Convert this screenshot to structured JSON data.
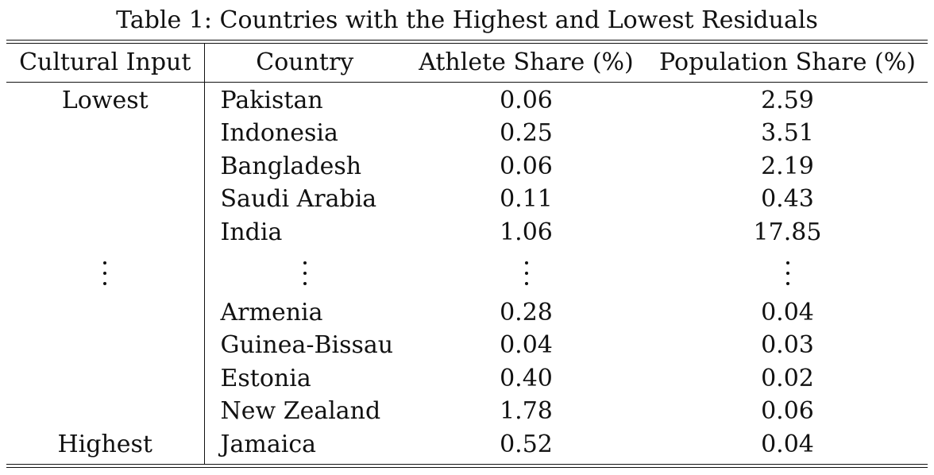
{
  "caption": "Table 1: Countries with the Highest and Lowest Residuals",
  "headers": {
    "cultural_input": "Cultural Input",
    "country": "Country",
    "athlete_share": "Athlete Share (%)",
    "population_share": "Population Share (%)"
  },
  "top_rows": [
    {
      "cultural_input": "Lowest",
      "country": "Pakistan",
      "athlete_share": "0.06",
      "population_share": "2.59"
    },
    {
      "cultural_input": "",
      "country": "Indonesia",
      "athlete_share": "0.25",
      "population_share": "3.51"
    },
    {
      "cultural_input": "",
      "country": "Bangladesh",
      "athlete_share": "0.06",
      "population_share": "2.19"
    },
    {
      "cultural_input": "",
      "country": "Saudi Arabia",
      "athlete_share": "0.11",
      "population_share": "0.43"
    },
    {
      "cultural_input": "",
      "country": "India",
      "athlete_share": "1.06",
      "population_share": "17.85"
    }
  ],
  "bottom_rows": [
    {
      "cultural_input": "",
      "country": "Armenia",
      "athlete_share": "0.28",
      "population_share": "0.04"
    },
    {
      "cultural_input": "",
      "country": "Guinea-Bissau",
      "athlete_share": "0.04",
      "population_share": "0.03"
    },
    {
      "cultural_input": "",
      "country": "Estonia",
      "athlete_share": "0.40",
      "population_share": "0.02"
    },
    {
      "cultural_input": "",
      "country": "New Zealand",
      "athlete_share": "1.78",
      "population_share": "0.06"
    },
    {
      "cultural_input": "Highest",
      "country": "Jamaica",
      "athlete_share": "0.52",
      "population_share": "0.04"
    }
  ]
}
